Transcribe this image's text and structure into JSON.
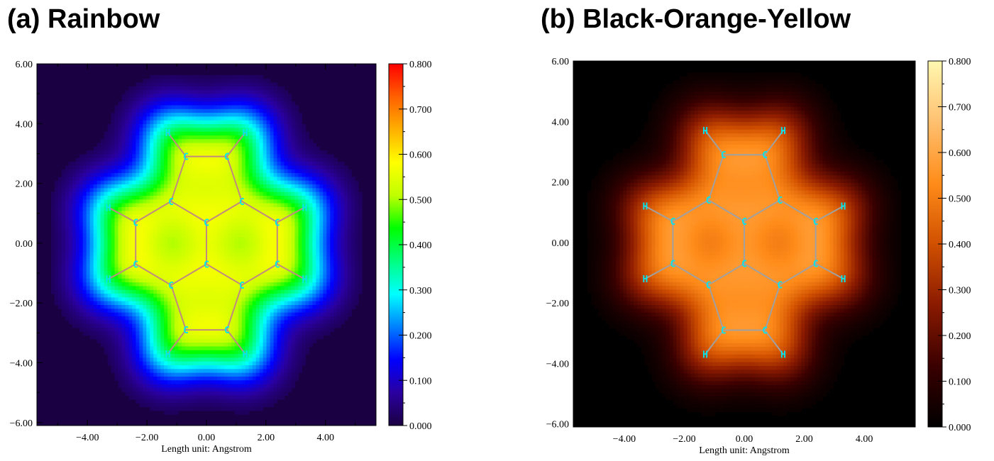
{
  "chart_data": [
    {
      "type": "heatmap",
      "title": "(a) Rainbow",
      "colormap_name": "Rainbow",
      "colormap": [
        "#1a0042",
        "#2a00a0",
        "#0000ff",
        "#0080ff",
        "#00ffff",
        "#00ff80",
        "#00ff00",
        "#c0ff00",
        "#ffff00",
        "#ffb000",
        "#ff6000",
        "#ff0000"
      ],
      "xlabel": "Length unit: Angstrom",
      "xlim": [
        -5.7,
        5.7
      ],
      "ylim": [
        -6.1,
        6.0
      ],
      "x_ticks": [
        "-4.00",
        "-2.00",
        "0.00",
        "2.00",
        "4.00"
      ],
      "y_ticks": [
        "6.00",
        "4.00",
        "2.00",
        "0.00",
        "-2.00",
        "-4.00",
        "-6.00"
      ],
      "colorbar_range": [
        0.0,
        0.8
      ],
      "colorbar_ticks": [
        "0.800",
        "0.700",
        "0.600",
        "0.500",
        "0.400",
        "0.300",
        "0.200",
        "0.100",
        "0.000"
      ],
      "bond_color": "#c08a80",
      "atom_label_color": "#00e5ee"
    },
    {
      "type": "heatmap",
      "title": "(b) Black-Orange-Yellow",
      "colormap_name": "Black-Orange-Yellow",
      "colormap": [
        "#000000",
        "#3a0000",
        "#8a1a00",
        "#d05000",
        "#ff8c1a",
        "#ffc070",
        "#fff8b0"
      ],
      "xlabel": "Length unit: Angstrom",
      "xlim": [
        -5.7,
        5.7
      ],
      "ylim": [
        -6.1,
        6.0
      ],
      "x_ticks": [
        "-4.00",
        "-2.00",
        "0.00",
        "2.00",
        "4.00"
      ],
      "y_ticks": [
        "6.00",
        "4.00",
        "2.00",
        "0.00",
        "-2.00",
        "-4.00",
        "-6.00"
      ],
      "colorbar_range": [
        0.0,
        0.8
      ],
      "colorbar_ticks": [
        "0.800",
        "0.700",
        "0.600",
        "0.500",
        "0.400",
        "0.300",
        "0.200",
        "0.100",
        "0.000"
      ],
      "bond_color": "#a0a0a0",
      "atom_label_color": "#00e5ee"
    }
  ],
  "molecule": {
    "atoms": [
      {
        "label": "C",
        "x": -0.69,
        "y": 2.9
      },
      {
        "label": "C",
        "x": 0.69,
        "y": 2.9
      },
      {
        "label": "C",
        "x": -1.19,
        "y": 1.4
      },
      {
        "label": "C",
        "x": 1.19,
        "y": 1.4
      },
      {
        "label": "C",
        "x": -2.38,
        "y": 0.7
      },
      {
        "label": "C",
        "x": 0.0,
        "y": 0.7
      },
      {
        "label": "C",
        "x": 2.38,
        "y": 0.7
      },
      {
        "label": "C",
        "x": -2.38,
        "y": -0.7
      },
      {
        "label": "C",
        "x": 0.0,
        "y": -0.7
      },
      {
        "label": "C",
        "x": 2.38,
        "y": -0.7
      },
      {
        "label": "C",
        "x": -1.19,
        "y": -1.4
      },
      {
        "label": "C",
        "x": 1.19,
        "y": -1.4
      },
      {
        "label": "C",
        "x": -0.69,
        "y": -2.9
      },
      {
        "label": "C",
        "x": 0.69,
        "y": -2.9
      },
      {
        "label": "H",
        "x": -1.3,
        "y": 3.7
      },
      {
        "label": "H",
        "x": 1.3,
        "y": 3.7
      },
      {
        "label": "H",
        "x": -3.3,
        "y": 1.2
      },
      {
        "label": "H",
        "x": 3.3,
        "y": 1.2
      },
      {
        "label": "H",
        "x": -3.3,
        "y": -1.2
      },
      {
        "label": "H",
        "x": 3.3,
        "y": -1.2
      },
      {
        "label": "H",
        "x": -1.3,
        "y": -3.7
      },
      {
        "label": "H",
        "x": 1.3,
        "y": -3.7
      }
    ],
    "bonds": [
      [
        0,
        1
      ],
      [
        0,
        2
      ],
      [
        1,
        3
      ],
      [
        2,
        5
      ],
      [
        3,
        5
      ],
      [
        2,
        4
      ],
      [
        3,
        6
      ],
      [
        4,
        7
      ],
      [
        6,
        9
      ],
      [
        5,
        8
      ],
      [
        7,
        10
      ],
      [
        9,
        11
      ],
      [
        8,
        10
      ],
      [
        8,
        11
      ],
      [
        10,
        12
      ],
      [
        11,
        13
      ],
      [
        12,
        13
      ],
      [
        0,
        14
      ],
      [
        1,
        15
      ],
      [
        4,
        16
      ],
      [
        6,
        17
      ],
      [
        7,
        18
      ],
      [
        9,
        19
      ],
      [
        12,
        20
      ],
      [
        13,
        21
      ]
    ]
  }
}
